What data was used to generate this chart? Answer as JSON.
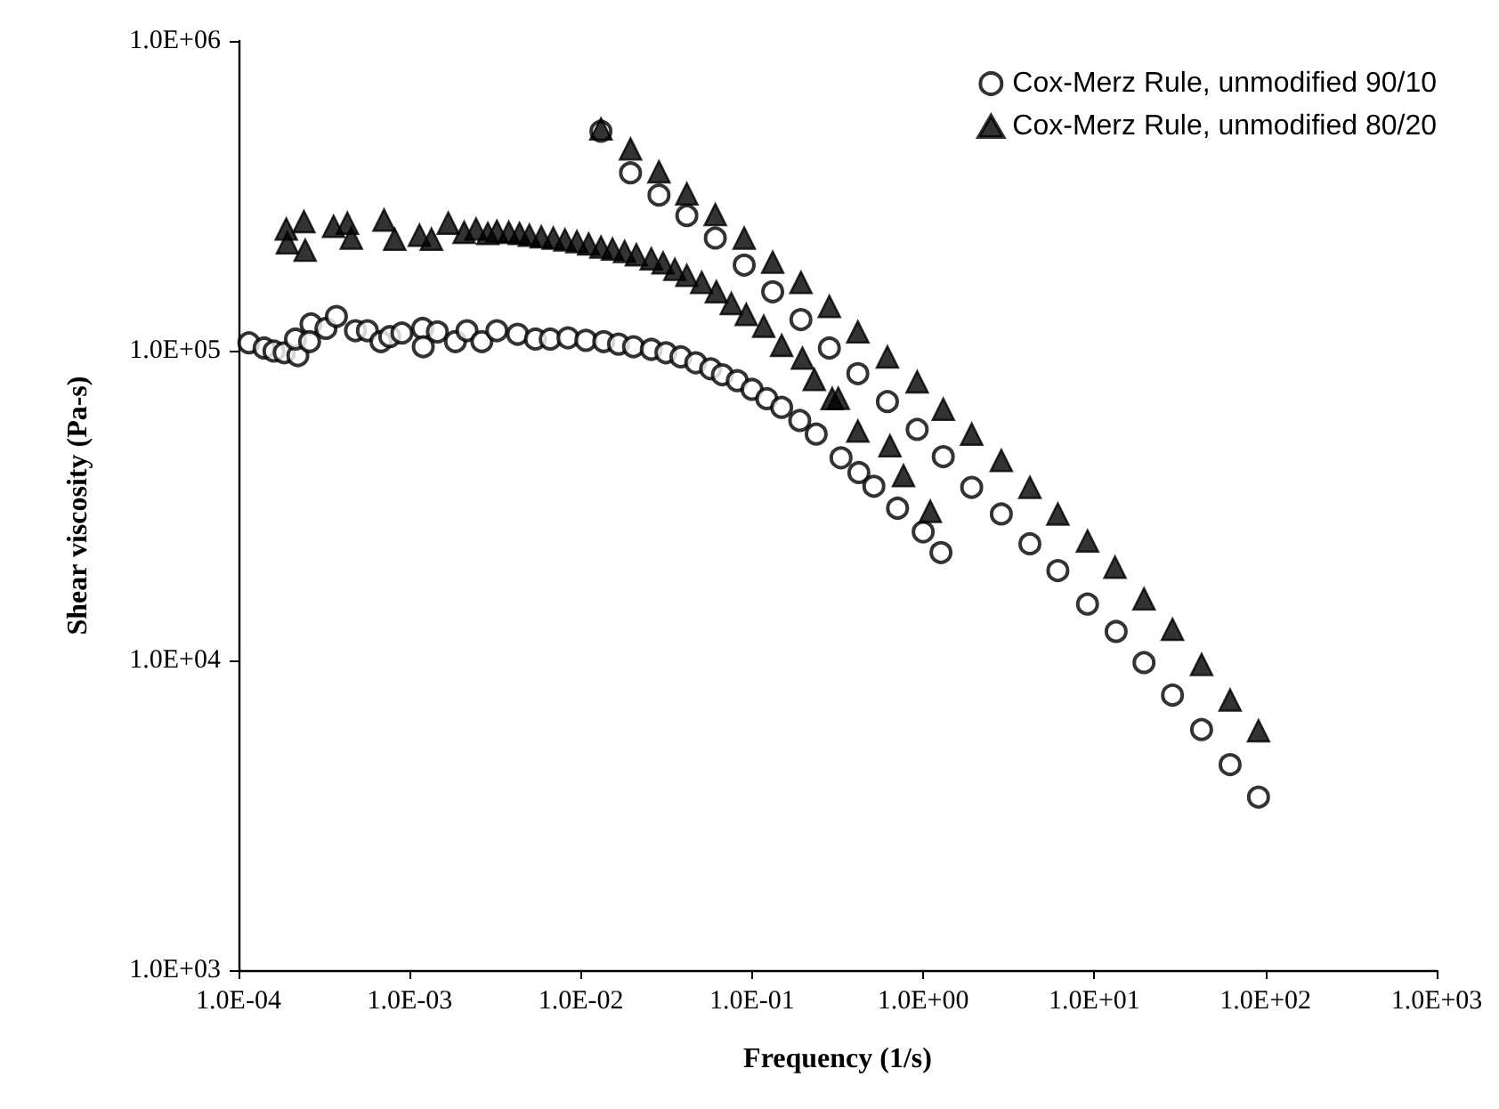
{
  "chart_data": {
    "type": "scatter",
    "xlabel": "Frequency (1/s)",
    "ylabel": "Shear viscosity (Pa-s)",
    "log": "xy",
    "grid": false,
    "legend": "top right",
    "xlim": [
      0.0001,
      1000
    ],
    "ylim": [
      1000,
      1000000
    ],
    "xticks": [
      {
        "value": 0.0001,
        "label": "1.0E-04"
      },
      {
        "value": 0.001,
        "label": "1.0E-03"
      },
      {
        "value": 0.01,
        "label": "1.0E-02"
      },
      {
        "value": 0.1,
        "label": "1.0E-01"
      },
      {
        "value": 1,
        "label": "1.0E+00"
      },
      {
        "value": 10,
        "label": "1.0E+01"
      },
      {
        "value": 100,
        "label": "1.0E+02"
      },
      {
        "value": 1000,
        "label": "1.0E+03"
      }
    ],
    "yticks": [
      {
        "value": 1000,
        "label": "1.0E+03"
      },
      {
        "value": 10000,
        "label": "1.0E+04"
      },
      {
        "value": 100000,
        "label": "1.0E+05"
      },
      {
        "value": 1000000,
        "label": "1.0E+06"
      }
    ],
    "series": [
      {
        "name": "Cox-Merz Rule, unmodified 90/10",
        "color": "#000000",
        "marker": "circle",
        "x": [
          0.000115,
          0.000141,
          0.000161,
          0.000185,
          0.000222,
          0.000215,
          0.000265,
          0.00026,
          0.000324,
          0.000373,
          0.000482,
          0.000566,
          0.000679,
          0.000765,
          0.0009,
          0.00119,
          0.0012,
          0.00145,
          0.00185,
          0.00216,
          0.00264,
          0.00323,
          0.00427,
          0.00543,
          0.00662,
          0.00841,
          0.0107,
          0.0136,
          0.0166,
          0.0203,
          0.0258,
          0.0314,
          0.0384,
          0.0469,
          0.0573,
          0.0671,
          0.082,
          0.1,
          0.122,
          0.149,
          0.19,
          0.237,
          0.331,
          0.421,
          0.515,
          0.708,
          1.0,
          1.27,
          0.0131,
          0.0195,
          0.0286,
          0.0416,
          0.061,
          0.09,
          0.132,
          0.193,
          0.283,
          0.415,
          0.618,
          0.922,
          1.31,
          1.92,
          2.86,
          4.2,
          6.12,
          9.12,
          13.4,
          19.5,
          28.6,
          42.3,
          62.1,
          91
        ],
        "values": [
          106000,
          102000,
          99700,
          98500,
          96400,
          109000,
          122000,
          107000,
          118000,
          129000,
          116000,
          116000,
          107000,
          111000,
          114000,
          118000,
          103000,
          115000,
          107000,
          116000,
          107000,
          116000,
          113000,
          109000,
          109000,
          110000,
          108000,
          107000,
          105000,
          103000,
          101000,
          98500,
          95500,
          91400,
          87400,
          83600,
          80000,
          75000,
          70000,
          65600,
          59500,
          53800,
          45100,
          40400,
          36500,
          31000,
          26000,
          22300,
          511000,
          375000,
          318000,
          273000,
          231000,
          189000,
          155000,
          126000,
          102000,
          84300,
          68500,
          55700,
          45500,
          36200,
          29700,
          23800,
          19500,
          15200,
          12400,
          9840,
          7730,
          5980,
          4610,
          3620
        ]
      },
      {
        "name": "Cox-Merz Rule, unmodified 80/20",
        "color": "#000000",
        "marker": "triangle",
        "x": [
          0.00019,
          0.000193,
          0.000241,
          0.000245,
          0.000359,
          0.000432,
          0.000456,
          0.000708,
          0.000817,
          0.00114,
          0.00134,
          0.00168,
          0.00208,
          0.00244,
          0.00286,
          0.00323,
          0.00379,
          0.00438,
          0.005,
          0.00587,
          0.0069,
          0.00807,
          0.00948,
          0.0111,
          0.0131,
          0.0153,
          0.018,
          0.0211,
          0.0258,
          0.0302,
          0.0354,
          0.0416,
          0.0508,
          0.0619,
          0.0757,
          0.0925,
          0.117,
          0.149,
          0.197,
          0.231,
          0.294,
          0.319,
          0.415,
          0.639,
          0.767,
          1.1,
          0.0131,
          0.0195,
          0.0286,
          0.0416,
          0.061,
          0.09,
          0.132,
          0.193,
          0.283,
          0.415,
          0.618,
          0.922,
          1.31,
          1.92,
          2.86,
          4.2,
          6.12,
          9.12,
          13.2,
          19.5,
          28.6,
          42.3,
          62.1,
          91
        ],
        "values": [
          247000,
          223000,
          261000,
          211000,
          252000,
          258000,
          231000,
          264000,
          229000,
          236000,
          229000,
          258000,
          241000,
          247000,
          239000,
          243000,
          241000,
          239000,
          236000,
          233000,
          231000,
          228000,
          225000,
          221000,
          216000,
          213000,
          209000,
          204000,
          198000,
          192000,
          183000,
          175000,
          166000,
          155000,
          142000,
          131000,
          120000,
          104000,
          94600,
          80700,
          70100,
          70200,
          55000,
          49300,
          39500,
          30300,
          520000,
          448000,
          378000,
          321000,
          275000,
          231000,
          193000,
          166000,
          139000,
          115000,
          95500,
          79300,
          64700,
          53800,
          44200,
          36200,
          29700,
          24300,
          20000,
          15800,
          12600,
          9700,
          7450,
          5930
        ]
      }
    ]
  }
}
